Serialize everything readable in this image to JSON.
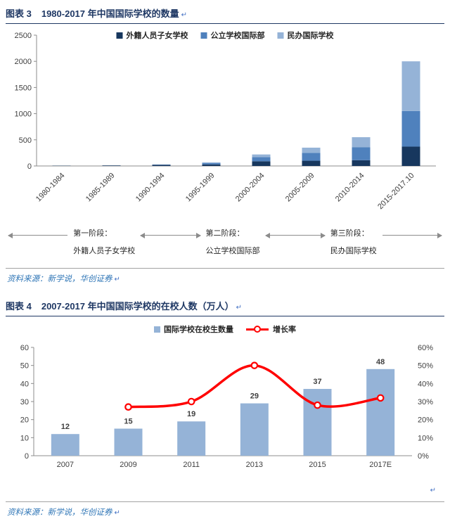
{
  "colors": {
    "title_navy": "#1F3864",
    "source_blue": "#2E75B6",
    "line_red": "#FF0000",
    "bar_dark": "#17375E",
    "bar_mid": "#4F81BD",
    "bar_light": "#95B3D7"
  },
  "figure3": {
    "label": "图表 3",
    "title": "1980-2017 年中国国际学校的数量",
    "para_mark": "↵",
    "source": "资料来源：新学说，华创证券",
    "timeline": {
      "stages": [
        {
          "phase": "第一阶段：",
          "type": "外籍人员子女学校"
        },
        {
          "phase": "第二阶段：",
          "type": "公立学校国际部"
        },
        {
          "phase": "第三阶段：",
          "type": "民办国际学校"
        }
      ]
    }
  },
  "figure4": {
    "label": "图表 4",
    "title": "2007-2017 年中国国际学校的在校人数（万人）",
    "para_mark": "↵",
    "source": "资料来源：新学说，华创证券"
  },
  "chart_data": [
    {
      "type": "bar",
      "stacked": true,
      "title": "1980-2017 年中国国际学校的数量",
      "categories": [
        "1980-1984",
        "1985-1989",
        "1990-1994",
        "1995-1999",
        "2000-2004",
        "2005-2009",
        "2010-2014",
        "2015-2017.10"
      ],
      "series": [
        {
          "name": "外籍人员子女学校",
          "color": "#17375E",
          "values": [
            5,
            10,
            20,
            30,
            90,
            100,
            110,
            370
          ]
        },
        {
          "name": "公立学校国际部",
          "color": "#4F81BD",
          "values": [
            0,
            0,
            5,
            25,
            80,
            150,
            250,
            680
          ]
        },
        {
          "name": "民办国际学校",
          "color": "#95B3D7",
          "values": [
            0,
            0,
            5,
            15,
            50,
            100,
            190,
            950
          ]
        }
      ],
      "ylim": [
        0,
        2500
      ],
      "yticks": [
        0,
        500,
        1000,
        1500,
        2000,
        2500
      ],
      "legend_position": "top",
      "grid": false
    },
    {
      "type": "combo",
      "title": "2007-2017 年中国国际学校的在校人数（万人）",
      "categories": [
        "2007",
        "2009",
        "2011",
        "2013",
        "2015",
        "2017E"
      ],
      "series": [
        {
          "kind": "bar",
          "name": "国际学校在校生数量",
          "color": "#95B3D7",
          "axis": "left",
          "values": [
            12,
            15,
            19,
            29,
            37,
            48
          ],
          "data_labels": true
        },
        {
          "kind": "line",
          "name": "增长率",
          "color": "#FF0000",
          "axis": "right",
          "unit": "%",
          "smooth": true,
          "marker": "circle",
          "values": [
            null,
            27,
            30,
            50,
            28,
            32
          ]
        }
      ],
      "ylim_left": [
        0,
        60
      ],
      "yticks_left": [
        0,
        10,
        20,
        30,
        40,
        50,
        60
      ],
      "ylim_right_percent": [
        0,
        60
      ],
      "yticks_right": [
        "0%",
        "10%",
        "20%",
        "30%",
        "40%",
        "50%",
        "60%"
      ],
      "legend_position": "top",
      "grid": false
    }
  ]
}
